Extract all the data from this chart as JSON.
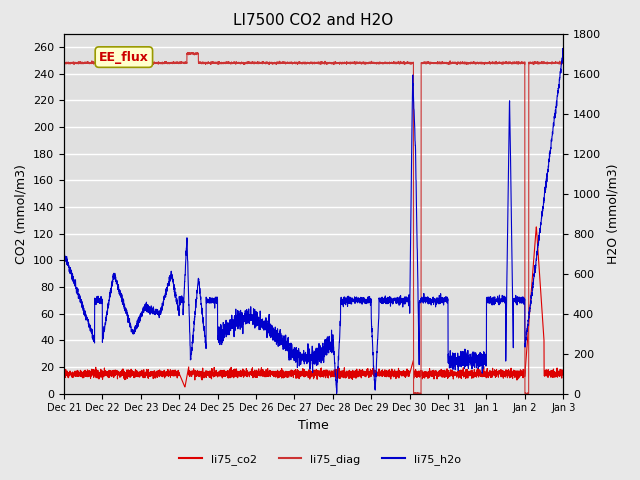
{
  "title": "LI7500 CO2 and H2O",
  "xlabel": "Time",
  "ylabel_left": "CO2 (mmol/m3)",
  "ylabel_right": "H2O (mmol/m3)",
  "ylim_left": [
    0,
    270
  ],
  "ylim_right": [
    0,
    1800
  ],
  "background_color": "#e8e8e8",
  "plot_bg_color": "#e0e0e0",
  "grid_color": "#ffffff",
  "annotation_text": "EE_flux",
  "annotation_color": "#cc0000",
  "annotation_bg": "#ffffcc",
  "line_co2_color": "#dd0000",
  "line_diag_color": "#cc3333",
  "line_h2o_color": "#0000cc",
  "legend_labels": [
    "li75_co2",
    "li75_diag",
    "li75_h2o"
  ],
  "xtick_labels": [
    "Dec 21",
    "Dec 22",
    "Dec 23",
    "Dec 24",
    "Dec 25",
    "Dec 26",
    "Dec 27",
    "Dec 28",
    "Dec 29",
    "Dec 30",
    "Dec 31",
    "Jan 1",
    "Jan 2",
    "Jan 3"
  ]
}
